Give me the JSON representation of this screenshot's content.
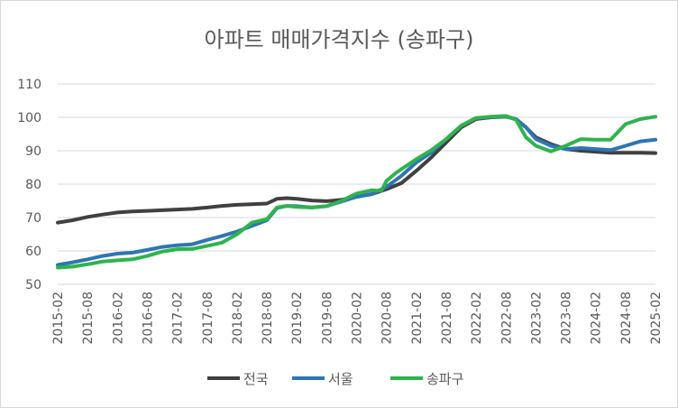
{
  "chart_data": {
    "type": "line",
    "title": "아파트 매매가격지수 (송파구)",
    "xlabel": "",
    "ylabel": "",
    "ylim": [
      50,
      110
    ],
    "yticks": [
      50,
      60,
      70,
      80,
      90,
      100,
      110
    ],
    "grid": "horizontal",
    "legend_position": "bottom",
    "x_tick_labels": [
      "2015-02",
      "2015-08",
      "2016-02",
      "2016-08",
      "2017-02",
      "2017-08",
      "2018-02",
      "2018-08",
      "2019-02",
      "2019-08",
      "2020-02",
      "2020-08",
      "2021-02",
      "2021-08",
      "2022-02",
      "2022-08",
      "2023-02",
      "2023-08",
      "2024-02",
      "2024-08",
      "2025-02"
    ],
    "x_months_note_free": true,
    "series": [
      {
        "name": "전국",
        "color": "#404040",
        "points": [
          [
            "2015-02",
            68.5
          ],
          [
            "2015-05",
            69.2
          ],
          [
            "2015-08",
            70.2
          ],
          [
            "2015-11",
            70.9
          ],
          [
            "2016-02",
            71.5
          ],
          [
            "2016-05",
            71.8
          ],
          [
            "2016-08",
            72.0
          ],
          [
            "2016-11",
            72.2
          ],
          [
            "2017-02",
            72.4
          ],
          [
            "2017-05",
            72.6
          ],
          [
            "2017-08",
            73.0
          ],
          [
            "2017-11",
            73.5
          ],
          [
            "2018-02",
            73.8
          ],
          [
            "2018-05",
            74.0
          ],
          [
            "2018-08",
            74.2
          ],
          [
            "2018-10",
            75.6
          ],
          [
            "2018-12",
            75.8
          ],
          [
            "2019-02",
            75.6
          ],
          [
            "2019-05",
            75.1
          ],
          [
            "2019-08",
            74.9
          ],
          [
            "2019-11",
            75.3
          ],
          [
            "2020-02",
            76.3
          ],
          [
            "2020-05",
            77.0
          ],
          [
            "2020-08",
            78.5
          ],
          [
            "2020-11",
            80.3
          ],
          [
            "2021-02",
            84.0
          ],
          [
            "2021-05",
            88.0
          ],
          [
            "2021-08",
            92.5
          ],
          [
            "2021-11",
            97.0
          ],
          [
            "2022-02",
            99.5
          ],
          [
            "2022-05",
            100.0
          ],
          [
            "2022-08",
            100.2
          ],
          [
            "2022-10",
            99.5
          ],
          [
            "2022-12",
            97.0
          ],
          [
            "2023-02",
            94.0
          ],
          [
            "2023-05",
            92.0
          ],
          [
            "2023-08",
            90.5
          ],
          [
            "2023-11",
            90.0
          ],
          [
            "2024-02",
            89.7
          ],
          [
            "2024-05",
            89.4
          ],
          [
            "2024-08",
            89.4
          ],
          [
            "2024-11",
            89.4
          ],
          [
            "2025-02",
            89.3
          ]
        ]
      },
      {
        "name": "서울",
        "color": "#2e75b6",
        "points": [
          [
            "2015-02",
            55.8
          ],
          [
            "2015-05",
            56.6
          ],
          [
            "2015-08",
            57.5
          ],
          [
            "2015-11",
            58.5
          ],
          [
            "2016-02",
            59.2
          ],
          [
            "2016-05",
            59.5
          ],
          [
            "2016-08",
            60.3
          ],
          [
            "2016-11",
            61.2
          ],
          [
            "2017-02",
            61.7
          ],
          [
            "2017-05",
            62.0
          ],
          [
            "2017-08",
            63.3
          ],
          [
            "2017-11",
            64.5
          ],
          [
            "2018-02",
            65.8
          ],
          [
            "2018-05",
            67.5
          ],
          [
            "2018-08",
            69.2
          ],
          [
            "2018-10",
            72.8
          ],
          [
            "2018-12",
            73.5
          ],
          [
            "2019-02",
            73.4
          ],
          [
            "2019-05",
            73.0
          ],
          [
            "2019-08",
            73.4
          ],
          [
            "2019-11",
            74.8
          ],
          [
            "2020-02",
            76.2
          ],
          [
            "2020-05",
            77.0
          ],
          [
            "2020-08",
            79.2
          ],
          [
            "2020-11",
            82.5
          ],
          [
            "2021-02",
            86.5
          ],
          [
            "2021-05",
            89.5
          ],
          [
            "2021-08",
            93.5
          ],
          [
            "2021-11",
            97.5
          ],
          [
            "2022-02",
            99.8
          ],
          [
            "2022-05",
            100.1
          ],
          [
            "2022-08",
            100.3
          ],
          [
            "2022-10",
            99.5
          ],
          [
            "2022-12",
            97.0
          ],
          [
            "2023-02",
            93.5
          ],
          [
            "2023-05",
            91.5
          ],
          [
            "2023-08",
            90.5
          ],
          [
            "2023-11",
            90.8
          ],
          [
            "2024-02",
            90.5
          ],
          [
            "2024-05",
            90.2
          ],
          [
            "2024-08",
            91.5
          ],
          [
            "2024-11",
            92.8
          ],
          [
            "2025-02",
            93.3
          ]
        ]
      },
      {
        "name": "송파구",
        "color": "#2fb34e",
        "points": [
          [
            "2015-02",
            55.0
          ],
          [
            "2015-05",
            55.3
          ],
          [
            "2015-08",
            56.0
          ],
          [
            "2015-11",
            56.8
          ],
          [
            "2016-02",
            57.2
          ],
          [
            "2016-05",
            57.5
          ],
          [
            "2016-08",
            58.5
          ],
          [
            "2016-11",
            59.8
          ],
          [
            "2017-02",
            60.5
          ],
          [
            "2017-05",
            60.6
          ],
          [
            "2017-08",
            61.5
          ],
          [
            "2017-11",
            62.5
          ],
          [
            "2018-02",
            65.0
          ],
          [
            "2018-05",
            68.5
          ],
          [
            "2018-08",
            69.5
          ],
          [
            "2018-10",
            73.0
          ],
          [
            "2018-12",
            73.5
          ],
          [
            "2019-02",
            73.2
          ],
          [
            "2019-05",
            73.0
          ],
          [
            "2019-08",
            73.4
          ],
          [
            "2019-11",
            75.0
          ],
          [
            "2020-02",
            77.2
          ],
          [
            "2020-05",
            78.2
          ],
          [
            "2020-07",
            78.0
          ],
          [
            "2020-08",
            81.0
          ],
          [
            "2020-10",
            83.5
          ],
          [
            "2021-02",
            87.5
          ],
          [
            "2021-05",
            90.2
          ],
          [
            "2021-08",
            93.5
          ],
          [
            "2021-11",
            97.5
          ],
          [
            "2022-02",
            99.8
          ],
          [
            "2022-05",
            100.2
          ],
          [
            "2022-08",
            100.4
          ],
          [
            "2022-10",
            99.3
          ],
          [
            "2022-12",
            94.0
          ],
          [
            "2023-02",
            91.5
          ],
          [
            "2023-05",
            89.8
          ],
          [
            "2023-08",
            91.5
          ],
          [
            "2023-11",
            93.5
          ],
          [
            "2024-02",
            93.3
          ],
          [
            "2024-05",
            93.3
          ],
          [
            "2024-08",
            98.0
          ],
          [
            "2024-11",
            99.5
          ],
          [
            "2025-02",
            100.2
          ]
        ]
      }
    ]
  }
}
